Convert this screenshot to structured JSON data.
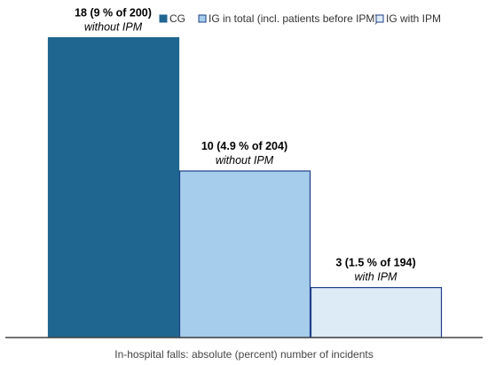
{
  "chart_data": {
    "type": "bar",
    "title": "",
    "xlabel": "In-hospital falls: absolute (percent) number of incidents",
    "ylabel": "",
    "ylim": [
      0,
      20
    ],
    "grid": false,
    "legend_position": "top-right",
    "series": [
      {
        "name": "CG",
        "value": 18,
        "color": "#1f6690",
        "stroke": "#1f6690",
        "label_main": "18 (9 % of 200)",
        "label_sub": "without IPM"
      },
      {
        "name": "IG in total (incl. patients before IPM)",
        "value": 10,
        "color": "#a6cdeb",
        "stroke": "#1f3f8a",
        "label_main": "10 (4.9 % of 204)",
        "label_sub": "without IPM"
      },
      {
        "name": "IG with IPM",
        "value": 3,
        "color": "#ddebf7",
        "stroke": "#1f3f8a",
        "label_main": "3 (1.5 % of 194)",
        "label_sub": "with IPM"
      }
    ]
  }
}
